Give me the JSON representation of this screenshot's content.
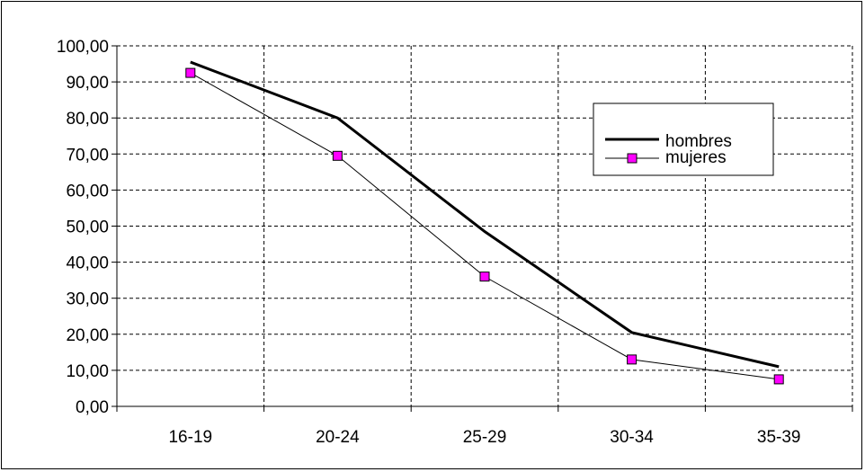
{
  "chart_data": {
    "type": "line",
    "categories": [
      "16-19",
      "20-24",
      "25-29",
      "30-34",
      "35-39"
    ],
    "series": [
      {
        "name": "hombres",
        "values": [
          95.5,
          80.0,
          48.5,
          20.5,
          11.0
        ],
        "color": "#000000",
        "marker": "none"
      },
      {
        "name": "mujeres",
        "values": [
          92.5,
          69.5,
          36.0,
          13.0,
          7.5
        ],
        "color": "#000000",
        "marker": "square",
        "marker_color": "#ff00ff"
      }
    ],
    "ylim": [
      0,
      100
    ],
    "yticks": [
      "0,00",
      "10,00",
      "20,00",
      "30,00",
      "40,00",
      "50,00",
      "60,00",
      "70,00",
      "80,00",
      "90,00",
      "100,00"
    ],
    "grid": true,
    "legend_position": "top-right"
  }
}
